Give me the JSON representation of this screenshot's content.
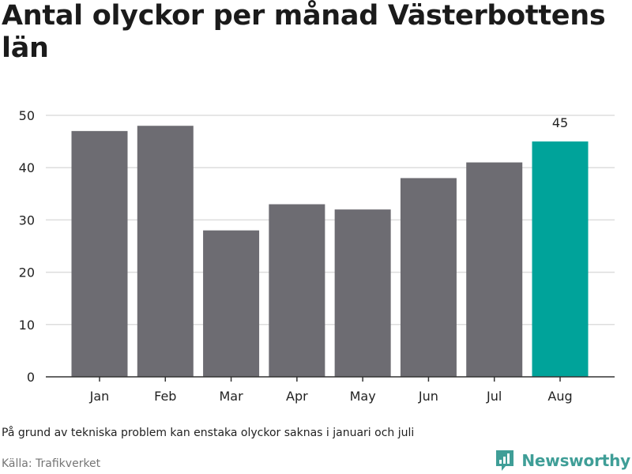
{
  "header": {
    "title": "Antal olyckor per månad Västerbottens län"
  },
  "chart_data": {
    "type": "bar",
    "categories": [
      "Jan",
      "Feb",
      "Mar",
      "Apr",
      "May",
      "Jun",
      "Jul",
      "Aug"
    ],
    "values": [
      47,
      48,
      28,
      33,
      32,
      38,
      41,
      45
    ],
    "ylim": [
      0,
      50
    ],
    "yticks": [
      0,
      10,
      20,
      30,
      40,
      50
    ],
    "grid": true,
    "highlight_index": 7,
    "highlight_label": "45",
    "colors": {
      "bar": "#6d6c72",
      "highlight": "#00a39a",
      "grid": "#dddddd",
      "axis": "#333333"
    }
  },
  "footer": {
    "note": "På grund av tekniska problem kan enstaka olyckor saknas i januari och juli",
    "source": "Källa: Trafikverket",
    "brand": "Newsworthy",
    "brand_icon": "newsworthy-logo-icon",
    "brand_color": "#3f9e97"
  }
}
